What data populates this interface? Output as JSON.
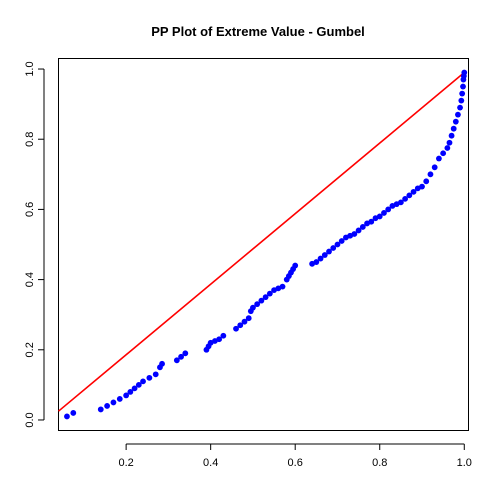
{
  "chart_data": {
    "type": "scatter",
    "title": "PP Plot of Extreme Value - Gumbel",
    "xlabel": "",
    "ylabel": "",
    "xlim": [
      0.04,
      1.01
    ],
    "ylim": [
      -0.03,
      1.03
    ],
    "x_ticks": [
      "0.2",
      "0.4",
      "0.6",
      "0.8",
      "1.0"
    ],
    "y_ticks": [
      "0.0",
      "0.2",
      "0.4",
      "0.6",
      "0.8",
      "1.0"
    ],
    "grid": false,
    "colors": {
      "points": "#0000ff",
      "reference_line": "#ff0000",
      "axes": "#000000"
    },
    "reference_line": {
      "x": [
        0.04,
        1.0
      ],
      "y": [
        0.025,
        0.99
      ]
    },
    "series": [
      {
        "values": [
          [
            0.06,
            0.01
          ],
          [
            0.075,
            0.02
          ],
          [
            0.14,
            0.03
          ],
          [
            0.155,
            0.04
          ],
          [
            0.17,
            0.05
          ],
          [
            0.185,
            0.06
          ],
          [
            0.2,
            0.07
          ],
          [
            0.21,
            0.08
          ],
          [
            0.22,
            0.09
          ],
          [
            0.23,
            0.1
          ],
          [
            0.24,
            0.11
          ],
          [
            0.255,
            0.12
          ],
          [
            0.27,
            0.13
          ],
          [
            0.28,
            0.15
          ],
          [
            0.285,
            0.16
          ],
          [
            0.32,
            0.17
          ],
          [
            0.33,
            0.18
          ],
          [
            0.34,
            0.19
          ],
          [
            0.39,
            0.2
          ],
          [
            0.395,
            0.21
          ],
          [
            0.4,
            0.22
          ],
          [
            0.41,
            0.225
          ],
          [
            0.42,
            0.23
          ],
          [
            0.43,
            0.24
          ],
          [
            0.46,
            0.26
          ],
          [
            0.47,
            0.27
          ],
          [
            0.48,
            0.28
          ],
          [
            0.49,
            0.29
          ],
          [
            0.495,
            0.31
          ],
          [
            0.5,
            0.32
          ],
          [
            0.51,
            0.33
          ],
          [
            0.52,
            0.34
          ],
          [
            0.53,
            0.35
          ],
          [
            0.54,
            0.36
          ],
          [
            0.55,
            0.37
          ],
          [
            0.56,
            0.375
          ],
          [
            0.57,
            0.38
          ],
          [
            0.58,
            0.4
          ],
          [
            0.585,
            0.41
          ],
          [
            0.59,
            0.42
          ],
          [
            0.595,
            0.43
          ],
          [
            0.6,
            0.44
          ],
          [
            0.64,
            0.445
          ],
          [
            0.65,
            0.45
          ],
          [
            0.66,
            0.46
          ],
          [
            0.67,
            0.47
          ],
          [
            0.68,
            0.48
          ],
          [
            0.69,
            0.49
          ],
          [
            0.7,
            0.5
          ],
          [
            0.71,
            0.51
          ],
          [
            0.72,
            0.52
          ],
          [
            0.73,
            0.525
          ],
          [
            0.74,
            0.53
          ],
          [
            0.75,
            0.54
          ],
          [
            0.76,
            0.55
          ],
          [
            0.77,
            0.56
          ],
          [
            0.78,
            0.565
          ],
          [
            0.79,
            0.575
          ],
          [
            0.8,
            0.58
          ],
          [
            0.81,
            0.59
          ],
          [
            0.82,
            0.6
          ],
          [
            0.83,
            0.61
          ],
          [
            0.84,
            0.615
          ],
          [
            0.85,
            0.62
          ],
          [
            0.86,
            0.63
          ],
          [
            0.87,
            0.64
          ],
          [
            0.88,
            0.65
          ],
          [
            0.89,
            0.66
          ],
          [
            0.9,
            0.665
          ],
          [
            0.91,
            0.68
          ],
          [
            0.92,
            0.7
          ],
          [
            0.93,
            0.72
          ],
          [
            0.94,
            0.745
          ],
          [
            0.95,
            0.76
          ],
          [
            0.96,
            0.775
          ],
          [
            0.965,
            0.79
          ],
          [
            0.97,
            0.81
          ],
          [
            0.975,
            0.83
          ],
          [
            0.98,
            0.85
          ],
          [
            0.985,
            0.87
          ],
          [
            0.99,
            0.89
          ],
          [
            0.993,
            0.91
          ],
          [
            0.995,
            0.93
          ],
          [
            0.997,
            0.95
          ],
          [
            0.998,
            0.97
          ],
          [
            0.999,
            0.98
          ],
          [
            1.0,
            0.99
          ]
        ]
      }
    ]
  }
}
